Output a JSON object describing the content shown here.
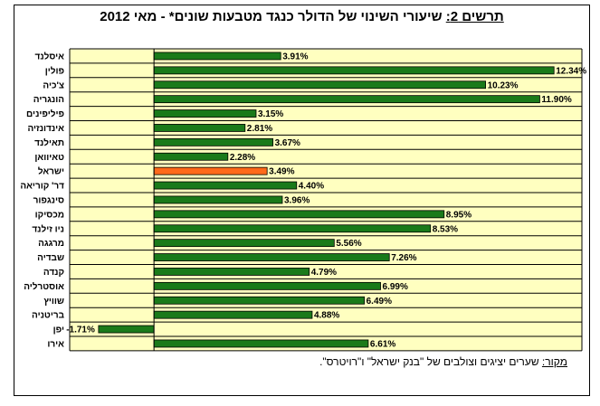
{
  "title": {
    "lead": "תרשים 2:",
    "text": "שיעורי השינוי של הדולר כנגד מטבעות שונים* - מאי 2012"
  },
  "source": {
    "lead": "מקור:",
    "text": "שערים יציגים וצולבים של \"בנק ישראל\" ו\"רויטרס\"."
  },
  "colors": {
    "bar": "#1a7a1a",
    "highlight_bar": "#ff6a1a",
    "band": "#ffffc0",
    "frame": "#000000"
  },
  "chart_data": {
    "type": "bar",
    "orientation": "horizontal",
    "highlight_category": "ישראל",
    "categories": [
      "איסלנד",
      "פולין",
      "צ'כיה",
      "הונגריה",
      "פיליפינים",
      "אינדונזיה",
      "תאילנד",
      "טאיוואן",
      "ישראל",
      "דר' קוריאה",
      "סינגפור",
      "מכסיקו",
      "ניו זילנד",
      "מרגגה",
      "שבדיה",
      "קנדה",
      "אוסטרליה",
      "שוויץ",
      "בריטניה",
      "יפן",
      "אירו"
    ],
    "values": [
      3.91,
      12.34,
      10.23,
      11.9,
      3.15,
      2.81,
      3.67,
      2.28,
      3.49,
      4.4,
      3.96,
      8.95,
      8.53,
      5.56,
      7.26,
      4.79,
      6.99,
      6.49,
      4.88,
      -1.71,
      6.61
    ],
    "value_labels": [
      "3.91%",
      "12.34%",
      "10.23%",
      "11.90%",
      "3.15%",
      "2.81%",
      "3.67%",
      "2.28%",
      "3.49%",
      "4.40%",
      "3.96%",
      "8.95%",
      "8.53%",
      "5.56%",
      "7.26%",
      "4.79%",
      "6.99%",
      "6.49%",
      "4.88%",
      "-1.71%",
      "6.61%"
    ],
    "xlim": [
      -2.6,
      13.2
    ],
    "grid": true,
    "legend": "none"
  }
}
